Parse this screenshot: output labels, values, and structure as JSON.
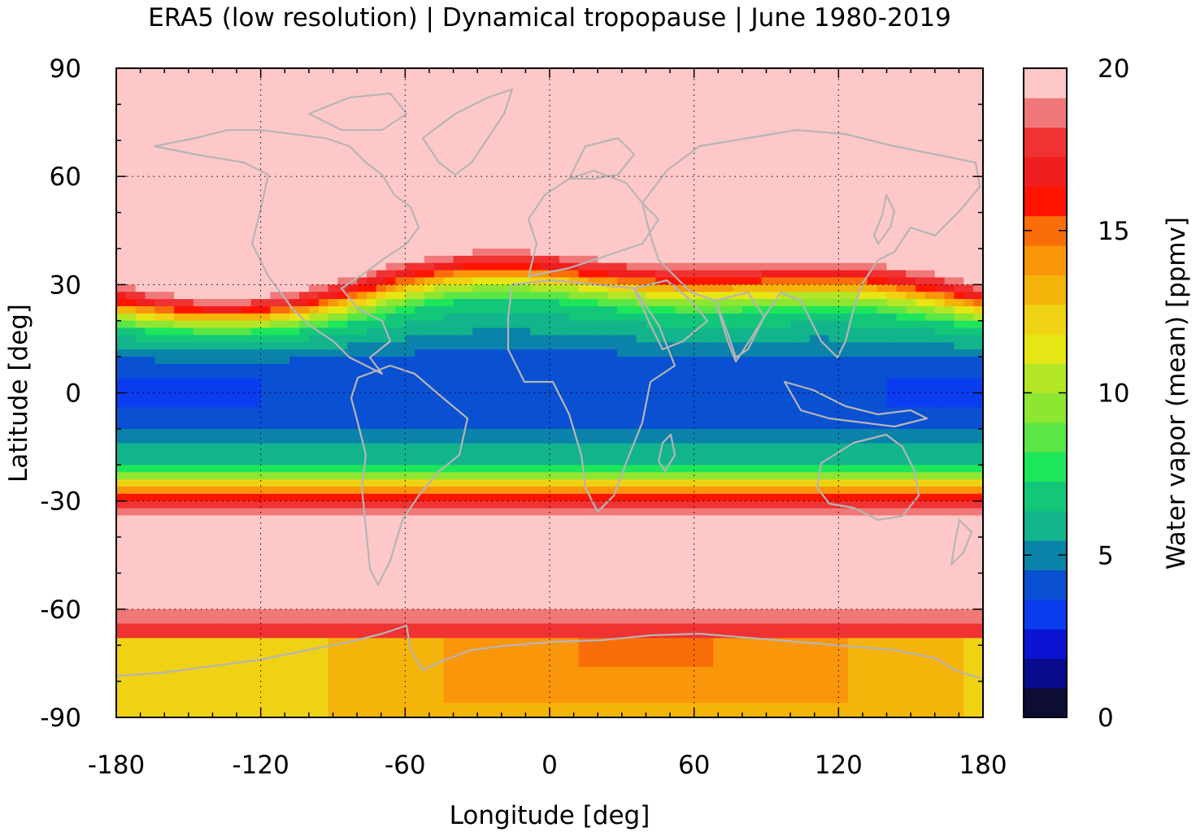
{
  "chart_data": {
    "type": "heatmap",
    "title": "ERA5 (low resolution) | Dynamical tropopause | June 1980-2019",
    "xlabel": "Longitude [deg]",
    "ylabel": "Latitude [deg]",
    "colorbar_label": "Water vapor (mean) [ppmv]",
    "xlim": [
      -180,
      180
    ],
    "ylim": [
      -90,
      90
    ],
    "x_ticks": [
      -180,
      -120,
      -60,
      0,
      60,
      120,
      180
    ],
    "x_tick_labels": [
      "-180",
      "-120",
      "-60",
      "0",
      "60",
      "120",
      "180"
    ],
    "y_ticks": [
      90,
      60,
      30,
      0,
      -30,
      -60,
      -90
    ],
    "y_tick_labels": [
      "90",
      "60",
      "30",
      "0",
      "-30",
      "-60",
      "-90"
    ],
    "grid": true,
    "colorbar": {
      "min": 0,
      "max": 20,
      "ticks": [
        20,
        15,
        10,
        5,
        0
      ],
      "tick_labels": [
        "20",
        "15",
        "10",
        "5",
        "0"
      ],
      "levels": 20,
      "colors": [
        "#0d0d33",
        "#0a0a8c",
        "#0a14d2",
        "#0a3cf0",
        "#0a50d2",
        "#0a82aa",
        "#12b48c",
        "#12c878",
        "#1ee65a",
        "#5ae646",
        "#8ce632",
        "#b4e628",
        "#e6e614",
        "#f0d214",
        "#f5b40a",
        "#fa960a",
        "#fa6e0a",
        "#ff1400",
        "#f01e1e",
        "#f03232",
        "#f07878",
        "#ffc8c8"
      ]
    },
    "profile_description_by_latitude_ppmv": {
      "latitude": [
        -90,
        -80,
        -72,
        -65,
        -55,
        -35,
        -30,
        -25,
        -20,
        -10,
        0,
        10,
        20,
        25,
        30,
        35,
        60,
        90
      ],
      "mean_water_vapor": [
        13.5,
        13.8,
        15.5,
        18,
        20,
        20,
        17,
        12,
        6.5,
        4.5,
        4.3,
        4.5,
        7,
        11,
        16.5,
        20,
        20,
        20
      ]
    }
  }
}
